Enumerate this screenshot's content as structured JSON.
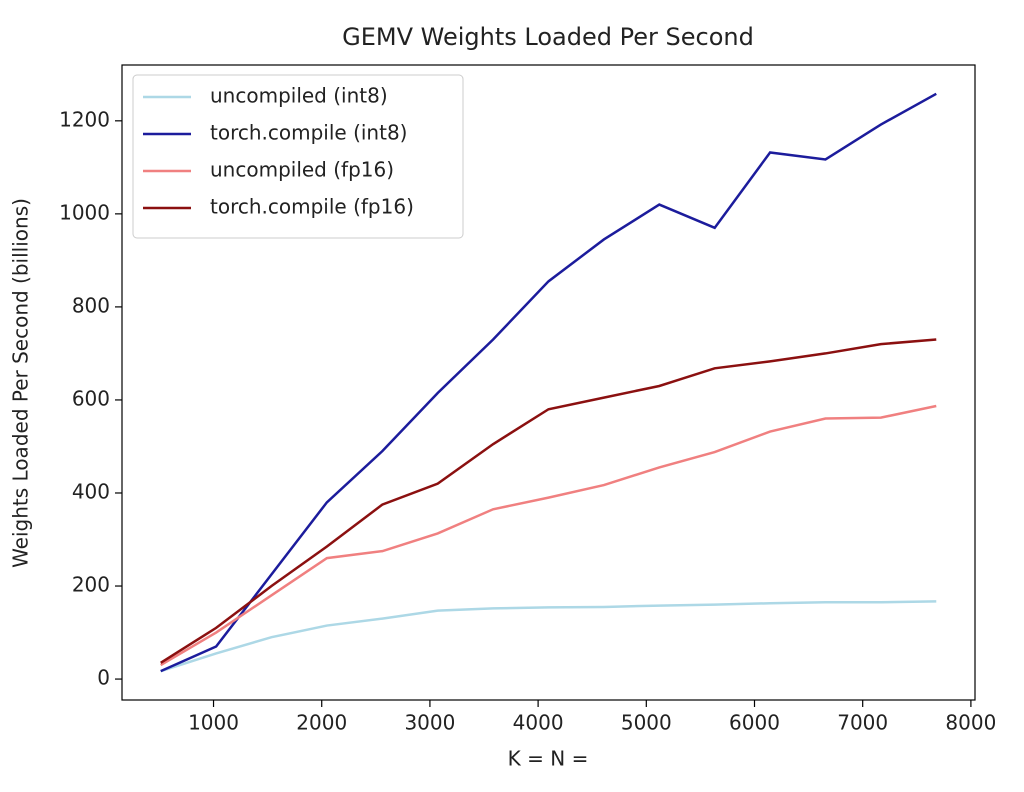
{
  "chart_data": {
    "type": "line",
    "title": "GEMV Weights Loaded Per Second",
    "xlabel": "K = N =",
    "ylabel": "Weights Loaded Per Second (billions)",
    "x": [
      512,
      1024,
      1536,
      2048,
      2560,
      3072,
      3584,
      4096,
      4608,
      5120,
      5632,
      6144,
      6656,
      7168,
      7680
    ],
    "series": [
      {
        "name": "uncompiled (int8)",
        "color": "#add8e6",
        "values": [
          17,
          55,
          90,
          115,
          130,
          147,
          152,
          154,
          155,
          158,
          160,
          163,
          165,
          165,
          167
        ]
      },
      {
        "name": "torch.compile (int8)",
        "color": "#1c1c9c",
        "values": [
          17,
          70,
          225,
          380,
          490,
          615,
          730,
          855,
          945,
          1020,
          970,
          1132,
          1117,
          1192,
          1258
        ]
      },
      {
        "name": "uncompiled (fp16)",
        "color": "#f08080",
        "values": [
          30,
          100,
          180,
          260,
          275,
          313,
          365,
          390,
          417,
          455,
          488,
          532,
          560,
          562,
          587
        ]
      },
      {
        "name": "torch.compile (fp16)",
        "color": "#8b1010",
        "values": [
          35,
          110,
          200,
          285,
          375,
          420,
          505,
          580,
          605,
          630,
          668,
          683,
          700,
          720,
          730
        ]
      }
    ],
    "xlim": [
      154,
      8038
    ],
    "ylim": [
      -45,
      1320
    ],
    "xticks": [
      1000,
      2000,
      3000,
      4000,
      5000,
      6000,
      7000,
      8000
    ],
    "yticks": [
      0,
      200,
      400,
      600,
      800,
      1000,
      1200
    ],
    "legend": "upper left"
  }
}
